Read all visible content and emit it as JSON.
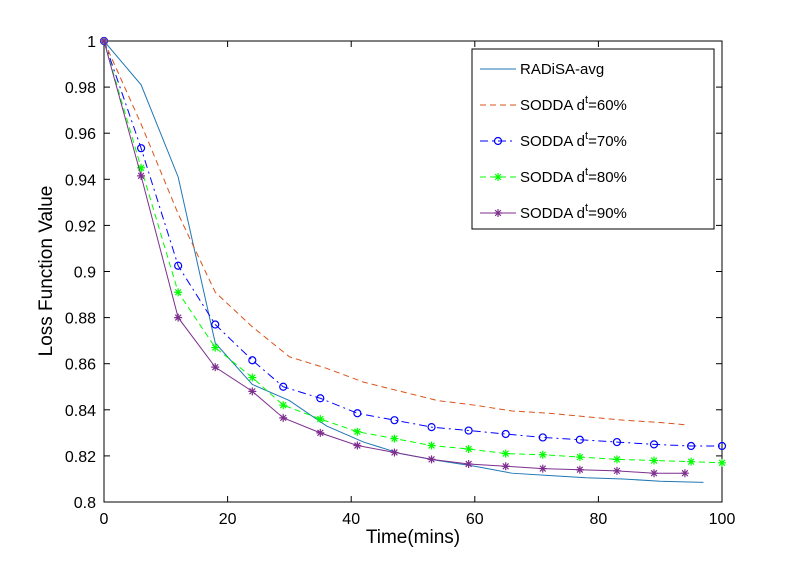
{
  "chart_data": {
    "type": "line",
    "title": "",
    "xlabel": "Time(mins)",
    "ylabel": "Loss Function Value",
    "xlim": [
      0,
      100
    ],
    "ylim": [
      0.8,
      1.0
    ],
    "xticks": [
      0,
      20,
      40,
      60,
      80,
      100
    ],
    "yticks": [
      0.8,
      0.82,
      0.84,
      0.86,
      0.88,
      0.9,
      0.92,
      0.94,
      0.96,
      0.98,
      1.0
    ],
    "xtick_labels": [
      "0",
      "20",
      "40",
      "60",
      "80",
      "100"
    ],
    "ytick_labels": [
      "0.8",
      "0.82",
      "0.84",
      "0.86",
      "0.88",
      "0.9",
      "0.92",
      "0.94",
      "0.96",
      "0.98",
      "1"
    ],
    "grid": false,
    "legend_position": "top-right",
    "series": [
      {
        "name": "RADiSA-avg",
        "label_main": "RADiSA-avg",
        "label_sup": "",
        "label_rest": "",
        "color": "#1f77b4",
        "dash": "solid",
        "marker": "none",
        "x": [
          0,
          6,
          12,
          18,
          24,
          30,
          36,
          42,
          48,
          54,
          60,
          66,
          72,
          78,
          84,
          90,
          97
        ],
        "y": [
          1.0,
          0.981,
          0.941,
          0.869,
          0.851,
          0.844,
          0.833,
          0.826,
          0.821,
          0.818,
          0.8155,
          0.8125,
          0.8115,
          0.8105,
          0.81,
          0.809,
          0.8085
        ]
      },
      {
        "name": "SODDA d^t=60%",
        "label_main": "SODDA d",
        "label_sup": "t",
        "label_rest": "=60%",
        "color": "#d95319",
        "dash": "dashed",
        "marker": "none",
        "x": [
          0,
          6,
          12,
          18,
          24,
          30,
          36,
          42,
          48,
          54,
          60,
          66,
          72,
          78,
          84,
          90,
          94
        ],
        "y": [
          1.0,
          0.964,
          0.925,
          0.891,
          0.876,
          0.863,
          0.858,
          0.852,
          0.848,
          0.844,
          0.842,
          0.8395,
          0.8385,
          0.837,
          0.8355,
          0.8345,
          0.8335
        ]
      },
      {
        "name": "SODDA d^t=70%",
        "label_main": "SODDA d",
        "label_sup": "t",
        "label_rest": "=70%",
        "color": "#0000ff",
        "dash": "dash-dot",
        "marker": "circle",
        "x": [
          0,
          6,
          12,
          18,
          24,
          29,
          35,
          41,
          47,
          53,
          59,
          65,
          71,
          77,
          83,
          89,
          95,
          100
        ],
        "y": [
          1.0,
          0.9535,
          0.9025,
          0.877,
          0.8615,
          0.85,
          0.845,
          0.8385,
          0.8355,
          0.8325,
          0.831,
          0.8295,
          0.828,
          0.827,
          0.826,
          0.825,
          0.8243,
          0.8243
        ]
      },
      {
        "name": "SODDA d^t=80%",
        "label_main": "SODDA d",
        "label_sup": "t",
        "label_rest": "=80%",
        "color": "#00ff00",
        "dash": "dashed",
        "marker": "star",
        "x": [
          0,
          6,
          12,
          18,
          24,
          29,
          35,
          41,
          47,
          53,
          59,
          65,
          71,
          77,
          83,
          89,
          95,
          100
        ],
        "y": [
          1.0,
          0.945,
          0.891,
          0.867,
          0.854,
          0.842,
          0.836,
          0.8305,
          0.8275,
          0.8245,
          0.823,
          0.821,
          0.8205,
          0.8195,
          0.8185,
          0.818,
          0.8175,
          0.817
        ]
      },
      {
        "name": "SODDA d^t=90%",
        "label_main": "SODDA d",
        "label_sup": "t",
        "label_rest": "=90%",
        "color": "#7e2f8e",
        "dash": "solid",
        "marker": "star",
        "x": [
          0,
          6,
          12,
          18,
          24,
          29,
          35,
          41,
          47,
          53,
          59,
          65,
          71,
          77,
          83,
          89,
          94
        ],
        "y": [
          1.0,
          0.9415,
          0.88,
          0.8585,
          0.848,
          0.8365,
          0.83,
          0.8245,
          0.8215,
          0.8185,
          0.8165,
          0.8155,
          0.8145,
          0.814,
          0.8135,
          0.8125,
          0.8125
        ]
      }
    ]
  }
}
